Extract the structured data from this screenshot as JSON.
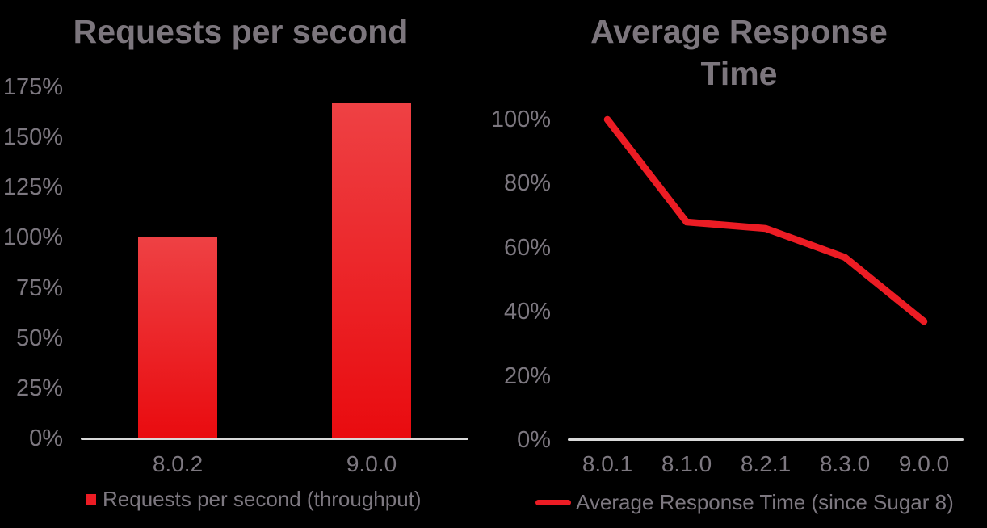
{
  "background": "#000000",
  "colors": {
    "title_gray": "#7c767d",
    "label_gray": "#7d7880",
    "axis_line": "#d9d9d9",
    "red": "#ec1c24",
    "bar_gradient_top": "#ee4144",
    "bar_gradient_bottom": "#e90b0f"
  },
  "chart_data": [
    {
      "type": "bar",
      "title": "Requests per second",
      "categories": [
        "8.0.2",
        "9.0.0"
      ],
      "unit": "%",
      "y_ticks": [
        "175%",
        "150%",
        "125%",
        "100%",
        "75%",
        "50%",
        "25%",
        "0%"
      ],
      "ylim": [
        0,
        175
      ],
      "grid": false,
      "legend_position": "bottom",
      "series": [
        {
          "name": "Requests per second (throughput)",
          "values": [
            100,
            167
          ],
          "color": "#ec1c24"
        }
      ]
    },
    {
      "type": "line",
      "title": "Average Response Time",
      "categories": [
        "8.0.1",
        "8.1.0",
        "8.2.1",
        "8.3.0",
        "9.0.0"
      ],
      "unit": "%",
      "y_ticks": [
        "100%",
        "80%",
        "60%",
        "40%",
        "20%",
        "0%"
      ],
      "ylim": [
        0,
        100
      ],
      "grid": false,
      "legend_position": "bottom",
      "series": [
        {
          "name": "Average Response Time (since Sugar 8)",
          "values": [
            100,
            68,
            66,
            57,
            37
          ],
          "color": "#ec1c24"
        }
      ]
    }
  ]
}
